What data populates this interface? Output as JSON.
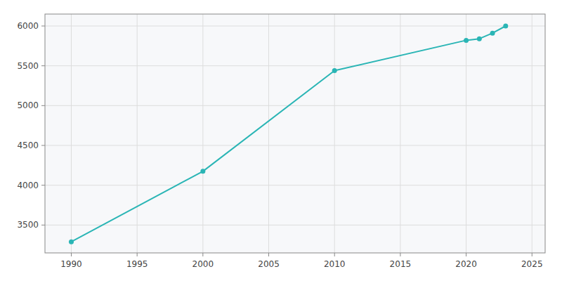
{
  "chart_data": {
    "type": "line",
    "x": [
      1990,
      2000,
      2010,
      2020,
      2021,
      2022,
      2023
    ],
    "values": [
      3290,
      4175,
      5440,
      5820,
      5840,
      5910,
      6000
    ],
    "color": "#2AB5B5",
    "marker": "circle",
    "xlim": [
      1988,
      2026
    ],
    "ylim": [
      3150,
      6150
    ],
    "xticks": [
      1990,
      1995,
      2000,
      2005,
      2010,
      2015,
      2020,
      2025
    ],
    "yticks": [
      3500,
      4000,
      4500,
      5000,
      5500,
      6000
    ],
    "grid": true
  }
}
